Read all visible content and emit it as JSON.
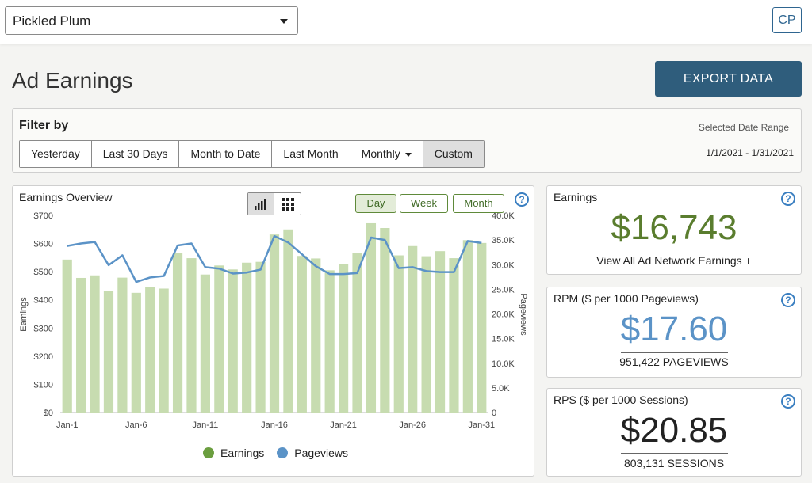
{
  "header": {
    "site_selector": "Pickled Plum",
    "avatar": "CP"
  },
  "page": {
    "title": "Ad Earnings",
    "export_label": "EXPORT DATA"
  },
  "filter": {
    "title": "Filter by",
    "buttons": [
      "Yesterday",
      "Last 30 Days",
      "Month to Date",
      "Last Month",
      "Monthly",
      "Custom"
    ],
    "active": "Custom",
    "range_label": "Selected Date Range",
    "range_value": "1/1/2021 - 1/31/2021"
  },
  "chart_panel": {
    "title": "Earnings Overview",
    "view_icons": [
      "bar-chart-icon",
      "grid-icon"
    ],
    "granularity": [
      "Day",
      "Week",
      "Month"
    ],
    "active_granularity": "Day",
    "help": "?"
  },
  "chart_data": {
    "type": "bar",
    "xlabel": "",
    "ylabel": "Earnings",
    "y2label": "Pageviews",
    "ylim": [
      0,
      700
    ],
    "y2lim": [
      0,
      40000
    ],
    "yticks": [
      "$0",
      "$100",
      "$200",
      "$300",
      "$400",
      "$500",
      "$600",
      "$700"
    ],
    "y2ticks": [
      "0",
      "5.0K",
      "10.0K",
      "15.0K",
      "20.0K",
      "25.0K",
      "30.0K",
      "35.0K",
      "40.0K"
    ],
    "xticks": [
      "Jan-1",
      "Jan-6",
      "Jan-11",
      "Jan-16",
      "Jan-21",
      "Jan-26",
      "Jan-31"
    ],
    "categories": [
      "Jan-1",
      "Jan-2",
      "Jan-3",
      "Jan-4",
      "Jan-5",
      "Jan-6",
      "Jan-7",
      "Jan-8",
      "Jan-9",
      "Jan-10",
      "Jan-11",
      "Jan-12",
      "Jan-13",
      "Jan-14",
      "Jan-15",
      "Jan-16",
      "Jan-17",
      "Jan-18",
      "Jan-19",
      "Jan-20",
      "Jan-21",
      "Jan-22",
      "Jan-23",
      "Jan-24",
      "Jan-25",
      "Jan-26",
      "Jan-27",
      "Jan-28",
      "Jan-29",
      "Jan-30",
      "Jan-31"
    ],
    "series": [
      {
        "name": "Earnings",
        "axis": "left",
        "kind": "bar",
        "color": "#c7dcb0",
        "values": [
          543,
          478,
          487,
          432,
          479,
          425,
          445,
          440,
          565,
          548,
          490,
          522,
          508,
          532,
          535,
          632,
          650,
          556,
          547,
          505,
          527,
          565,
          672,
          655,
          558,
          591,
          555,
          573,
          548,
          612,
          602
        ]
      },
      {
        "name": "Pageviews",
        "axis": "right",
        "kind": "line",
        "color": "#5b93c7",
        "values": [
          33800,
          34300,
          34600,
          29900,
          31900,
          26500,
          27400,
          27700,
          33900,
          34300,
          29500,
          29200,
          28200,
          28400,
          29000,
          35800,
          34500,
          32100,
          29700,
          28100,
          28100,
          28300,
          35500,
          35000,
          29300,
          29500,
          28700,
          28500,
          28500,
          34800,
          34400
        ]
      }
    ],
    "legend": [
      "Earnings",
      "Pageviews"
    ],
    "legend_colors": [
      "#6b9e3f",
      "#5b93c7"
    ]
  },
  "stats": {
    "earnings": {
      "title": "Earnings",
      "value": "$16,743",
      "sub": "View All Ad Network Earnings +",
      "color": "#5a7d2e"
    },
    "rpm": {
      "title": "RPM ($ per 1000 Pageviews)",
      "value": "$17.60",
      "sub": "951,422 PAGEVIEWS",
      "color": "#5b93c7"
    },
    "rps": {
      "title": "RPS ($ per 1000 Sessions)",
      "value": "$20.85",
      "sub": "803,131 SESSIONS",
      "color": "#222222"
    }
  }
}
